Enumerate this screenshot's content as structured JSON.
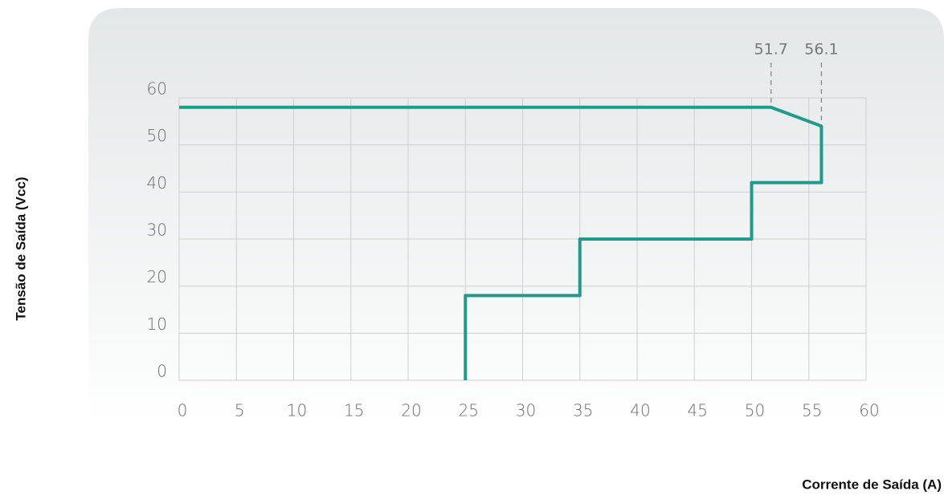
{
  "chart_data": {
    "type": "line",
    "xlabel": "Corrente de Saída (A)",
    "ylabel": "Tensão de Saída (Vcc)",
    "x": [
      0,
      51.7,
      56.1,
      56.1,
      50,
      50,
      35,
      35,
      25,
      25
    ],
    "values": [
      58,
      58,
      54,
      42,
      42,
      30,
      30,
      18,
      18,
      0
    ],
    "color": "#1f9b8c",
    "annotations": [
      51.7,
      56.1
    ],
    "xlim": [
      0,
      60
    ],
    "xticks": [
      0,
      5,
      10,
      15,
      20,
      25,
      30,
      35,
      40,
      45,
      50,
      55,
      60
    ],
    "ylim": [
      0,
      60
    ],
    "yticks": [
      0,
      10,
      20,
      30,
      40,
      50,
      60
    ],
    "grid": true
  }
}
